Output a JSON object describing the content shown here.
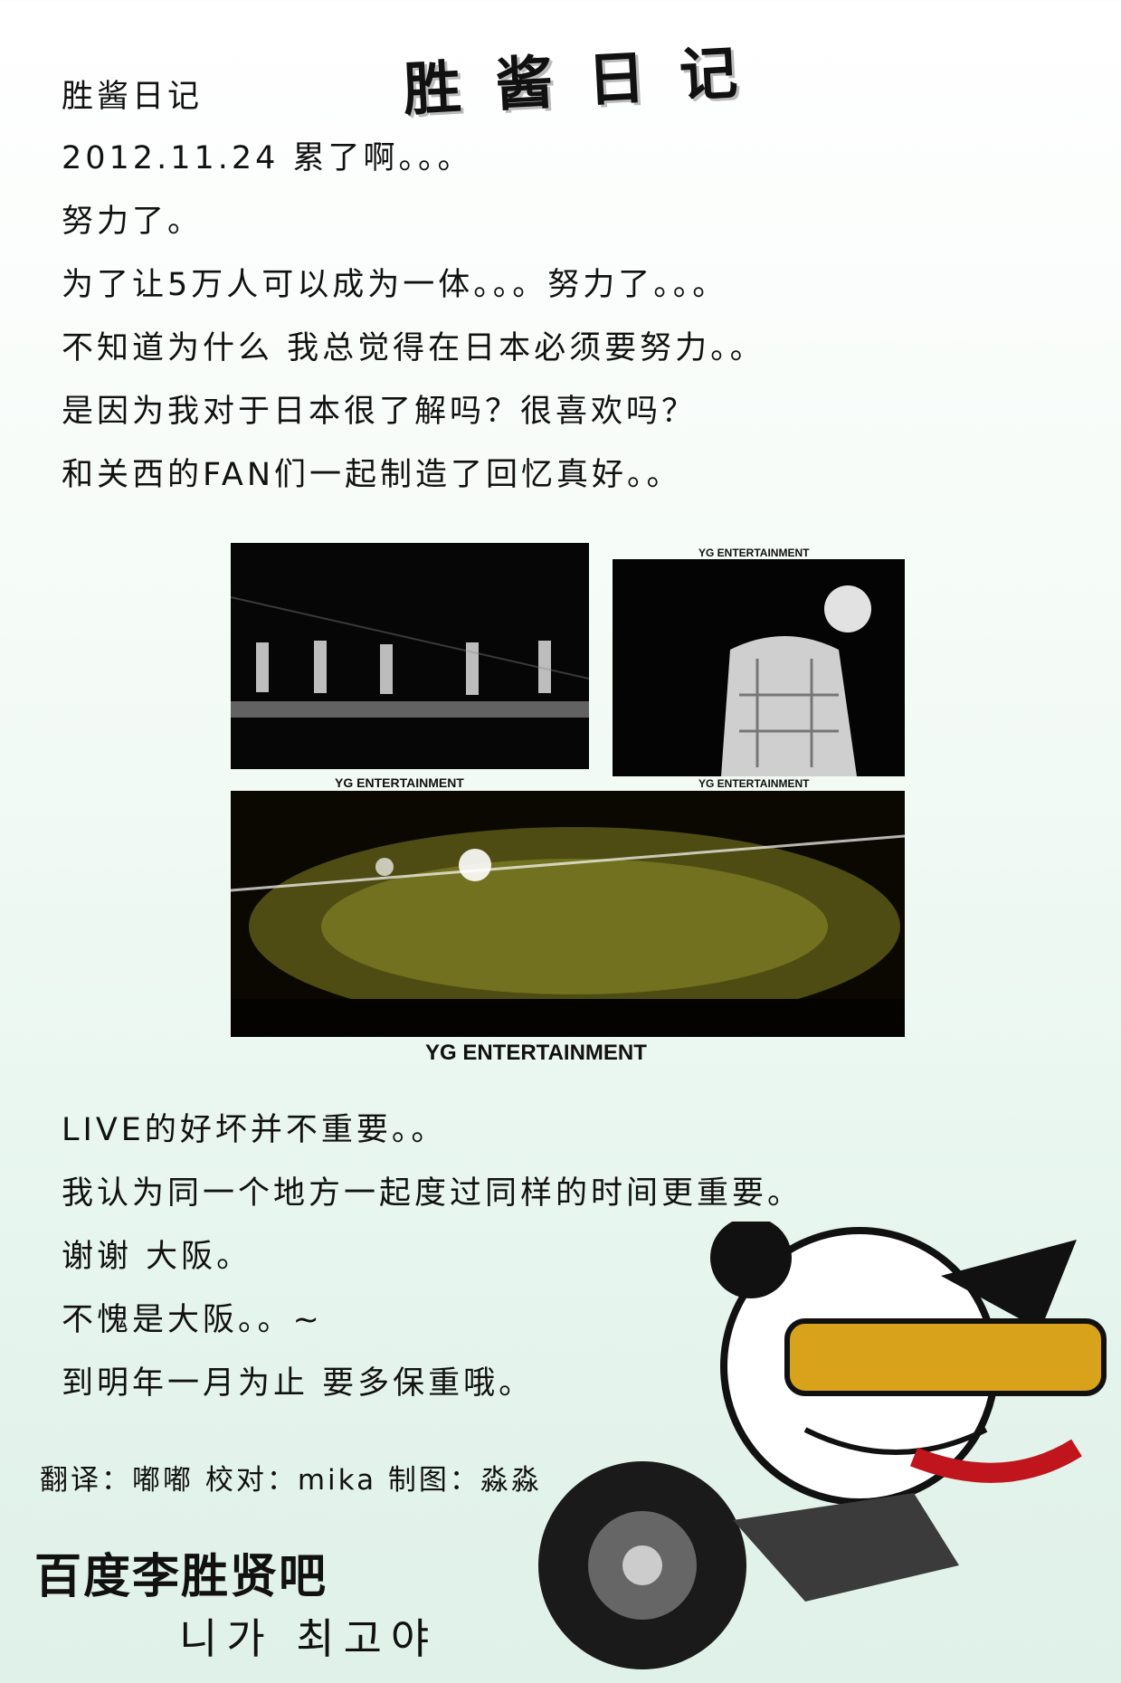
{
  "title": "胜酱日记",
  "diary_lines": [
    "胜酱日记",
    "2012.11.24 累了啊。。。",
    "努力了。",
    "为了让5万人可以成为一体。。。努力了。。。",
    "不知道为什么 我总觉得在日本必须要努力。。",
    "是因为我对于日本很了解吗？很喜欢吗？",
    "和关西的FAN们一起制造了回忆真好。。"
  ],
  "closing_lines": [
    "LIVE的好坏并不重要。。",
    "我认为同一个地方一起度过同样的时间更重要。",
    "谢谢 大阪。",
    "不愧是大阪。。~",
    "到明年一月为止 要多保重哦。"
  ],
  "watermark": "YG ENTERTAINMENT",
  "credits": "翻译：嘟嘟  校对：mika  制图：淼淼",
  "logo": {
    "main": "百度李胜贤吧",
    "sub": "니가 최고야"
  },
  "colors": {
    "background": "#eef8f2",
    "text": "#111111"
  }
}
